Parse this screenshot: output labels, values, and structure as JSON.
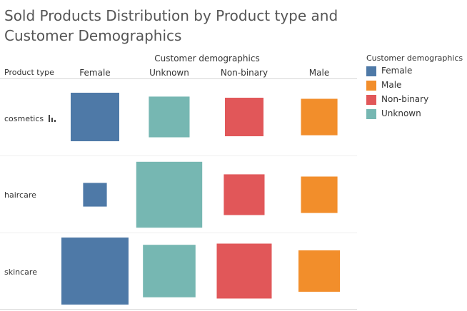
{
  "chart_data": {
    "type": "heatmap",
    "title": "Sold Products Distribution by Product type and Customer Demographics",
    "column_group_label": "Customer demographics",
    "row_header_label": "Product type",
    "columns": [
      "Female",
      "Unknown",
      "Non-binary",
      "Male"
    ],
    "rows": [
      "cosmetics",
      "haircare",
      "skincare"
    ],
    "size_encoding": "square area",
    "values": [
      [
        4600,
        3250,
        2900,
        2600
      ],
      [
        1100,
        8500,
        3250,
        2600
      ],
      [
        8800,
        5400,
        5900,
        3350
      ]
    ],
    "legend": {
      "title": "Customer demographics",
      "placement": "right",
      "entries": [
        {
          "label": "Female",
          "color": "#4e79a7"
        },
        {
          "label": "Male",
          "color": "#f28e2b"
        },
        {
          "label": "Non-binary",
          "color": "#e15759"
        },
        {
          "label": "Unknown",
          "color": "#76b7b2"
        }
      ]
    },
    "colors": {
      "Female": "#4e79a7",
      "Unknown": "#76b7b2",
      "Non-binary": "#e15759",
      "Male": "#f28e2b"
    }
  },
  "icons": {
    "row_marker": "bar-chart-icon"
  }
}
